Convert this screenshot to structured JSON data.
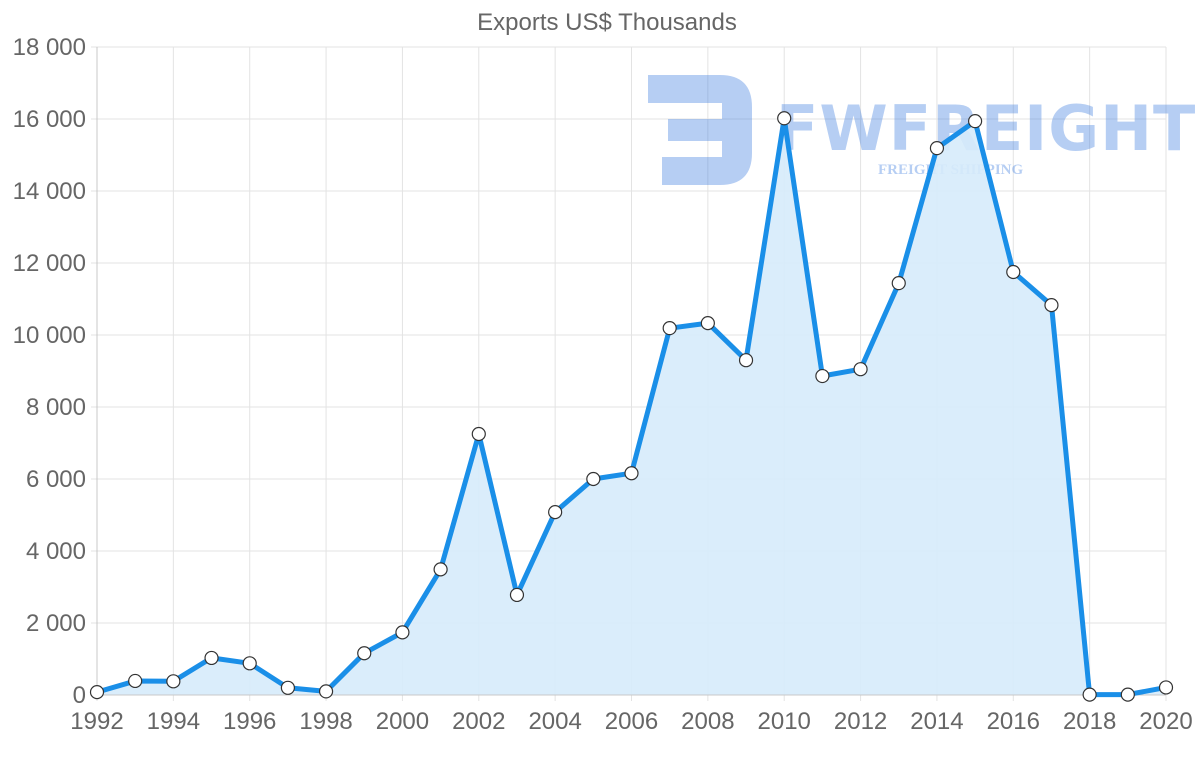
{
  "chart_data": {
    "type": "area",
    "title": "Exports US$ Thousands",
    "xlabel": "",
    "ylabel": "",
    "x": [
      1992,
      1993,
      1994,
      1995,
      1996,
      1997,
      1998,
      1999,
      2000,
      2001,
      2002,
      2003,
      2004,
      2005,
      2006,
      2007,
      2008,
      2009,
      2010,
      2011,
      2012,
      2013,
      2014,
      2015,
      2016,
      2017,
      2018,
      2019,
      2020
    ],
    "series": [
      {
        "name": "Exports",
        "color": "#1a8fe8",
        "fill": "#d6ebfb",
        "values": [
          80,
          390,
          380,
          1030,
          880,
          200,
          100,
          1160,
          1740,
          3490,
          7250,
          2780,
          5080,
          6000,
          6160,
          10190,
          10330,
          9300,
          16020,
          8860,
          9050,
          11440,
          15190,
          15940,
          11750,
          10830,
          10,
          10,
          210
        ]
      }
    ],
    "ylim": [
      0,
      18000
    ],
    "yticks": [
      0,
      2000,
      4000,
      6000,
      8000,
      10000,
      12000,
      14000,
      16000,
      18000
    ],
    "ytick_labels": [
      "0",
      "2 000",
      "4 000",
      "6 000",
      "8 000",
      "10 000",
      "12 000",
      "14 000",
      "16 000",
      "18 000"
    ],
    "xtick_labels": [
      "1992",
      "1994",
      "1996",
      "1998",
      "2000",
      "2002",
      "2004",
      "2006",
      "2008",
      "2010",
      "2012",
      "2014",
      "2016",
      "2018",
      "2020"
    ],
    "grid": true,
    "legend": "none"
  },
  "watermark": {
    "brand": "FWFREIGHT",
    "tagline": "FREIGHT SHIPPING"
  }
}
